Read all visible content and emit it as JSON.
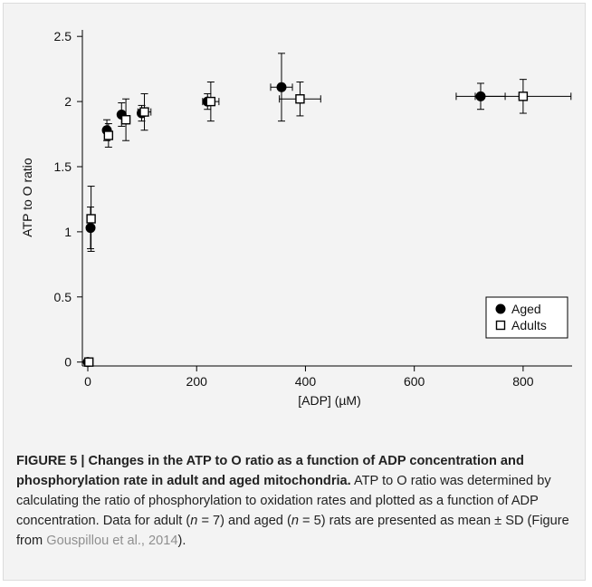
{
  "chart_data": {
    "type": "scatter",
    "xlabel": "[ADP] (µM)",
    "ylabel": "ATP to O ratio",
    "xlim": [
      -10,
      890
    ],
    "ylim": [
      -0.03,
      2.55
    ],
    "xticks": [
      0,
      200,
      400,
      600,
      800
    ],
    "yticks": [
      0,
      0.5,
      1,
      1.5,
      2,
      2.5
    ],
    "xtick_labels": [
      "0",
      "200",
      "400",
      "600",
      "800"
    ],
    "ytick_labels": [
      "0",
      "0.5",
      "1",
      "1.5",
      "2",
      "2.5"
    ],
    "legend_position": "bottom-right",
    "grid": false,
    "series": [
      {
        "name": "Aged",
        "marker": "filled-circle",
        "points": [
          {
            "x": 0,
            "y": 0.0,
            "yerr": 0.0,
            "xerr": 0
          },
          {
            "x": 5,
            "y": 1.03,
            "yerr": 0.16,
            "xerr": 0
          },
          {
            "x": 35,
            "y": 1.78,
            "yerr": 0.08,
            "xerr": 0
          },
          {
            "x": 62,
            "y": 1.9,
            "yerr": 0.09,
            "xerr": 0
          },
          {
            "x": 99,
            "y": 1.91,
            "yerr": 0.06,
            "xerr": 0
          },
          {
            "x": 220,
            "y": 2.0,
            "yerr": 0.06,
            "xerr": 0
          },
          {
            "x": 356,
            "y": 2.11,
            "yerr": 0.26,
            "xerr": 20
          },
          {
            "x": 722,
            "y": 2.04,
            "yerr": 0.1,
            "xerr": 45
          }
        ]
      },
      {
        "name": "Adults",
        "marker": "open-square",
        "points": [
          {
            "x": 2,
            "y": 0.0,
            "yerr": 0.0,
            "xerr": 0
          },
          {
            "x": 6,
            "y": 1.1,
            "yerr": 0.25,
            "xerr": 0
          },
          {
            "x": 38,
            "y": 1.74,
            "yerr": 0.09,
            "xerr": 0
          },
          {
            "x": 70,
            "y": 1.86,
            "yerr": 0.16,
            "xerr": 0
          },
          {
            "x": 104,
            "y": 1.92,
            "yerr": 0.14,
            "xerr": 12
          },
          {
            "x": 226,
            "y": 2.0,
            "yerr": 0.15,
            "xerr": 15
          },
          {
            "x": 390,
            "y": 2.02,
            "yerr": 0.13,
            "xerr": 38
          },
          {
            "x": 800,
            "y": 2.04,
            "yerr": 0.13,
            "xerr": 88
          }
        ]
      }
    ]
  },
  "caption": {
    "figure_label": "FIGURE 5 | Changes in the ATP to O ratio as a function of ADP concentration and phosphorylation rate in adult and aged mitochondria.",
    "text_1": " ATP to O ratio was determined by calculating the ratio of phosphorylation to oxidation rates and plotted as a function of ADP concentration. Data for adult (",
    "n_label_1": "n",
    "text_2": " = 7) and aged (",
    "n_label_2": "n",
    "text_3": " = 5) rats are presented as mean ± SD (Figure from ",
    "citation": "Gouspillou et al., 2014",
    "text_4": ")."
  }
}
